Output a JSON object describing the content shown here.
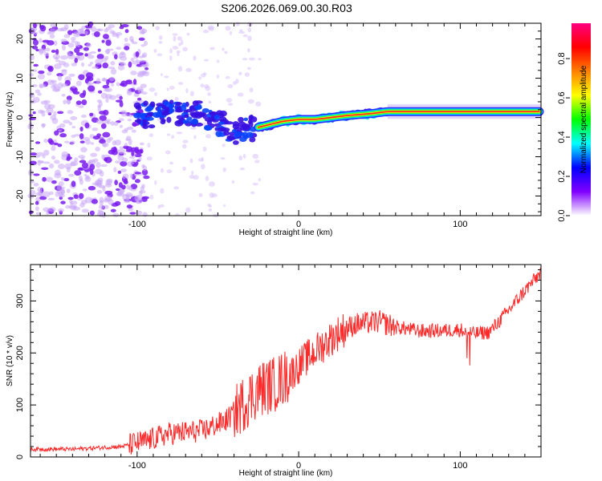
{
  "title": "S206.2026.069.00.30.R03",
  "chart_data": [
    {
      "type": "heatmap",
      "name": "spectrogram",
      "xlabel": "Height of straight line (km)",
      "ylabel": "Frequency (Hz)",
      "xlim": [
        -166,
        150
      ],
      "ylim": [
        -25,
        24
      ],
      "xticks": [
        -100,
        0,
        100
      ],
      "yticks": [
        -20,
        -10,
        0,
        10,
        20
      ],
      "colorbar": {
        "label": "Normalized spectral amplitude",
        "range": [
          0,
          0.98
        ],
        "ticks": [
          0.0,
          0.2,
          0.4,
          0.6,
          0.8
        ],
        "tick_labels": [
          "0.0",
          "0.2",
          "0.4",
          "0.6",
          "0.8"
        ],
        "colormap": [
          "#ffffff",
          "#8000ff",
          "#0000ff",
          "#00ffff",
          "#00ff00",
          "#ffff00",
          "#ff8000",
          "#ff0000",
          "#ff0080"
        ]
      },
      "signal_center_hz": [
        {
          "x": -100,
          "f": 0.5
        },
        {
          "x": -80,
          "f": 1.0
        },
        {
          "x": -60,
          "f": 1.0
        },
        {
          "x": -40,
          "f": -3.5
        },
        {
          "x": -25,
          "f": -2.5
        },
        {
          "x": -10,
          "f": -1.0
        },
        {
          "x": 0,
          "f": -0.5
        },
        {
          "x": 10,
          "f": -0.5
        },
        {
          "x": 20,
          "f": 0.0
        },
        {
          "x": 30,
          "f": 0.5
        },
        {
          "x": 45,
          "f": 1.0
        },
        {
          "x": 55,
          "f": 1.5
        },
        {
          "x": 100,
          "f": 1.5
        },
        {
          "x": 150,
          "f": 1.5
        }
      ]
    },
    {
      "type": "line",
      "name": "snr",
      "xlabel": "Height of straight line (km)",
      "ylabel": "SNR (10 * v/v)",
      "xlim": [
        -166,
        150
      ],
      "ylim": [
        0,
        370
      ],
      "xticks": [
        -100,
        0,
        100
      ],
      "yticks": [
        0,
        100,
        200,
        300
      ],
      "series_color": "#ff2a2a",
      "trend": [
        {
          "x": -166,
          "y": 15
        },
        {
          "x": -140,
          "y": 15
        },
        {
          "x": -110,
          "y": 20
        },
        {
          "x": -95,
          "y": 30
        },
        {
          "x": -80,
          "y": 45
        },
        {
          "x": -60,
          "y": 50
        },
        {
          "x": -45,
          "y": 70
        },
        {
          "x": -35,
          "y": 100
        },
        {
          "x": -25,
          "y": 130
        },
        {
          "x": -15,
          "y": 140
        },
        {
          "x": -5,
          "y": 160
        },
        {
          "x": 5,
          "y": 190
        },
        {
          "x": 15,
          "y": 215
        },
        {
          "x": 25,
          "y": 240
        },
        {
          "x": 35,
          "y": 255
        },
        {
          "x": 50,
          "y": 260
        },
        {
          "x": 60,
          "y": 250
        },
        {
          "x": 75,
          "y": 242
        },
        {
          "x": 90,
          "y": 243
        },
        {
          "x": 100,
          "y": 245
        },
        {
          "x": 108,
          "y": 237
        },
        {
          "x": 118,
          "y": 240
        },
        {
          "x": 128,
          "y": 275
        },
        {
          "x": 140,
          "y": 320
        },
        {
          "x": 150,
          "y": 355
        }
      ]
    }
  ]
}
